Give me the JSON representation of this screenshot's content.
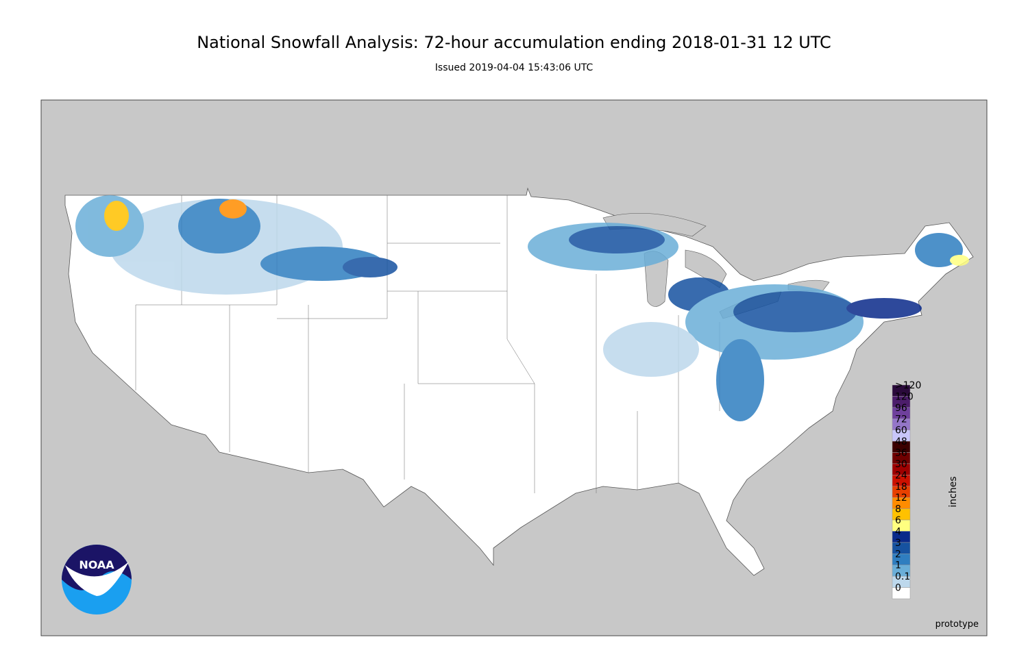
{
  "header": {
    "title": "National Snowfall Analysis: 72-hour accumulation ending 2018-01-31 12 UTC",
    "subtitle": "Issued 2019-04-04 15:43:06 UTC"
  },
  "legend": {
    "unit": "inches",
    "labels": [
      ">120",
      "120",
      "96",
      "72",
      "60",
      "48",
      "36",
      "30",
      "24",
      "18",
      "12",
      "8",
      "6",
      "4",
      "3",
      "2",
      "1",
      "0.1",
      "0"
    ],
    "colors": [
      "#2a0a3b",
      "#4c1d6b",
      "#6f409c",
      "#9476c8",
      "#c8c6fa",
      "#3b0000",
      "#6e0000",
      "#9e0000",
      "#cc1100",
      "#e84000",
      "#ff8c00",
      "#ffc100",
      "#ffff80",
      "#0a2a8a",
      "#1652a0",
      "#2f7ec0",
      "#6aaed8",
      "#bdd8ec",
      "#ffffff"
    ]
  },
  "logo": "NOAA",
  "note": "prototype"
}
